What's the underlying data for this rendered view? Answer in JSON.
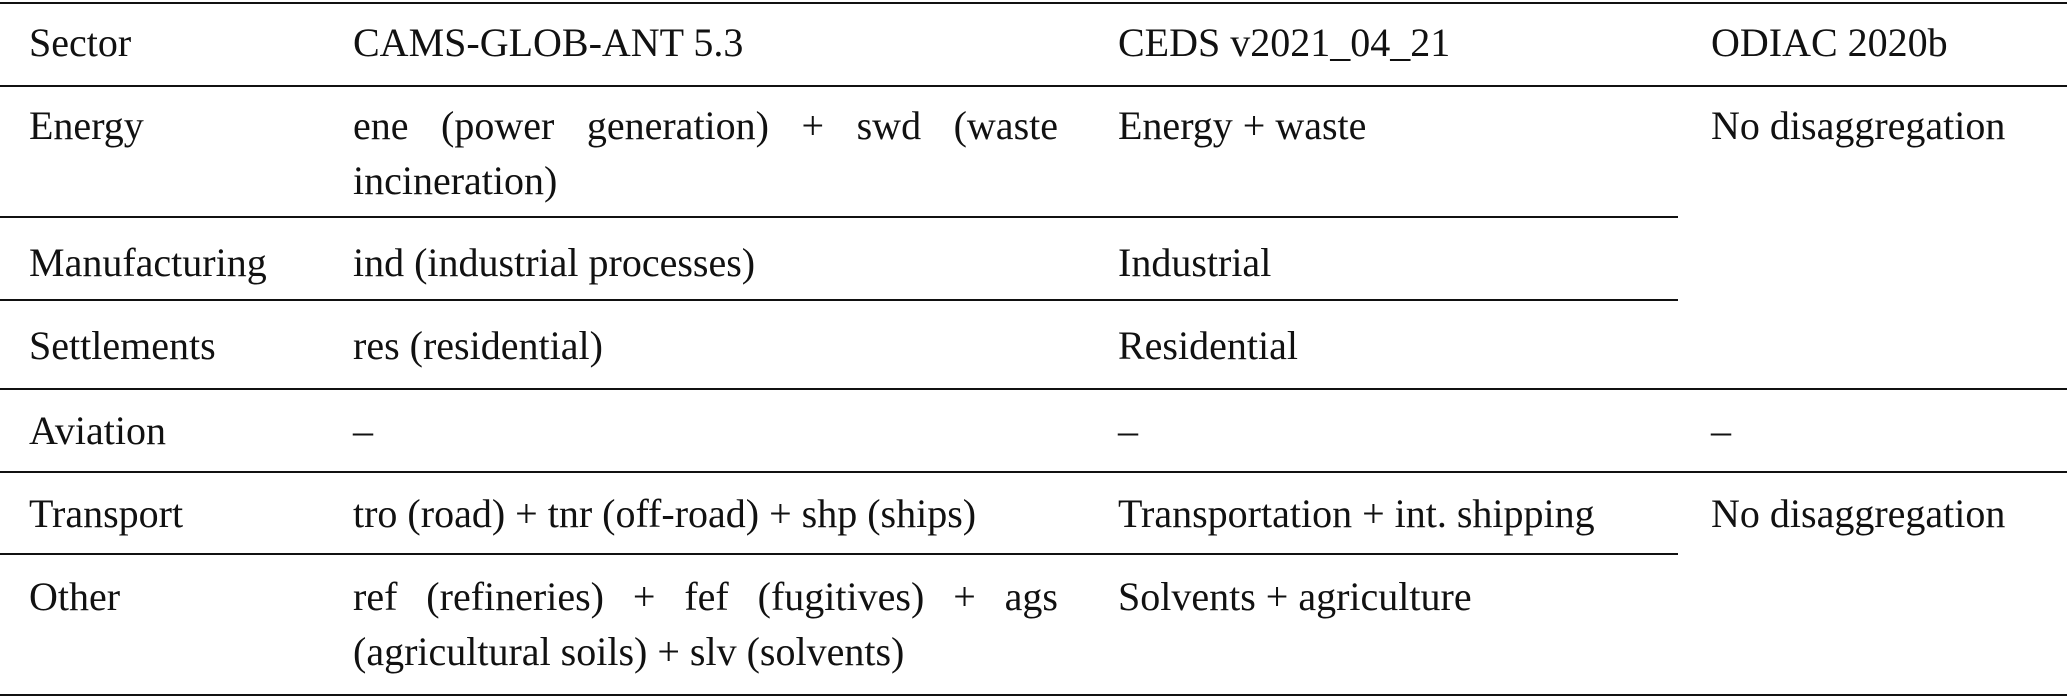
{
  "table": {
    "header": [
      "Sector",
      "CAMS-GLOB-ANT 5.3",
      "CEDS v2021_04_21",
      "ODIAC 2020b"
    ],
    "rows": [
      [
        "Energy",
        "ene (power generation) + swd (waste incineration)",
        "Energy + waste",
        "No disaggregation"
      ],
      [
        "Manufacturing",
        "ind (industrial processes)",
        "Industrial"
      ],
      [
        "Settlements",
        "res (residential)",
        "Residential"
      ],
      [
        "Aviation",
        "–",
        "–",
        "–"
      ],
      [
        "Transport",
        "tro (road) + tnr (off-road) + shp (ships)",
        "Transportation + int. shipping",
        "No disaggregation"
      ],
      [
        "Other",
        "ref (refineries) + fef (fugitives) + ags (agricultural soils) + slv (solvents)",
        "Solvents + agriculture"
      ]
    ]
  }
}
